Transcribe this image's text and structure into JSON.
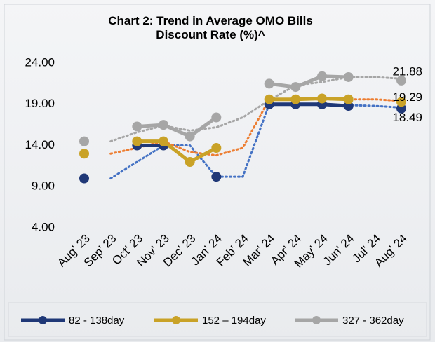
{
  "chart_data": {
    "type": "line",
    "title": "Chart 2: Trend in Average OMO Bills Discount Rate (%)^",
    "categories": [
      "Aug' 23",
      "Sep' 23",
      "Oct' 23",
      "Nov' 23",
      "Dec' 23",
      "Jan' 24",
      "Feb' 24",
      "Mar' 24",
      "Apr' 24",
      "May' 24",
      "Jun' 24",
      "Jul' 24",
      "Aug' 24"
    ],
    "series": [
      {
        "name": "82 - 138day",
        "color": "#1f3877",
        "values": [
          10.0,
          null,
          14.0,
          14.0,
          null,
          10.2,
          null,
          19.0,
          19.0,
          19.0,
          18.8,
          null,
          18.49
        ],
        "trendline": [
          null,
          10.0,
          12.0,
          14.0,
          14.0,
          10.2,
          10.2,
          19.0,
          19.0,
          19.0,
          18.9,
          18.8,
          18.6
        ]
      },
      {
        "name": "152 – 194day",
        "color": "#c9a227",
        "values": [
          13.0,
          null,
          14.5,
          14.5,
          12.0,
          13.7,
          null,
          19.6,
          19.6,
          19.7,
          19.6,
          null,
          19.29
        ],
        "trendline": [
          null,
          13.0,
          13.7,
          14.5,
          13.2,
          12.8,
          13.7,
          19.6,
          19.6,
          19.6,
          19.6,
          19.6,
          19.4
        ]
      },
      {
        "name": "327 - 362day",
        "color": "#a6a6a6",
        "values": [
          14.5,
          null,
          16.3,
          16.5,
          15.1,
          17.4,
          null,
          21.5,
          21.1,
          22.4,
          22.3,
          null,
          21.88
        ],
        "trendline": [
          null,
          14.5,
          15.6,
          16.4,
          15.8,
          16.2,
          17.4,
          19.5,
          21.3,
          21.7,
          22.3,
          22.3,
          22.1
        ]
      }
    ],
    "ylim": [
      4,
      24
    ],
    "yticks": [
      {
        "value": 4,
        "label": "4.00"
      },
      {
        "value": 9,
        "label": "9.00"
      },
      {
        "value": 14,
        "label": "14.00"
      },
      {
        "value": 19,
        "label": "19.00"
      },
      {
        "value": 24,
        "label": "24.00"
      }
    ],
    "legend": "bottom"
  }
}
